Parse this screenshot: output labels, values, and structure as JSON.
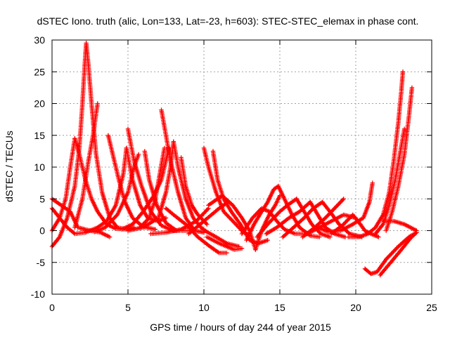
{
  "chart_data": {
    "type": "scatter",
    "title": "dSTEC Iono. truth (alic, Lon=133, Lat=-23, h=603): STEC-STEC_elemax in phase cont.",
    "xlabel": "GPS time / hours of day 244 of year 2015",
    "ylabel": "dSTEC  / TECUs",
    "xlim": [
      0,
      25
    ],
    "ylim": [
      -10,
      30
    ],
    "xticks": [
      0,
      5,
      10,
      15,
      20,
      25
    ],
    "yticks": [
      -10,
      -5,
      0,
      5,
      10,
      15,
      20,
      25,
      30
    ],
    "grid": true,
    "marker": "plus",
    "color": "#ff0000",
    "series": [
      {
        "points": [
          [
            0,
            5
          ],
          [
            0.6,
            4
          ],
          [
            1.2,
            3
          ],
          [
            1.7,
            0.5
          ],
          [
            2.5,
            0
          ],
          [
            3.2,
            -0.3
          ],
          [
            3.8,
            -1
          ]
        ]
      },
      {
        "points": [
          [
            0,
            -2.5
          ],
          [
            0.5,
            -1
          ],
          [
            1,
            2
          ],
          [
            1.5,
            7
          ],
          [
            1.8,
            13
          ],
          [
            2,
            20
          ],
          [
            2.15,
            26
          ],
          [
            2.25,
            29.5
          ]
        ]
      },
      {
        "points": [
          [
            2.25,
            29.5
          ],
          [
            2.4,
            26
          ],
          [
            2.6,
            20
          ],
          [
            2.9,
            12
          ],
          [
            3.3,
            6
          ],
          [
            3.8,
            2
          ],
          [
            4.3,
            0.5
          ],
          [
            5,
            0.2
          ]
        ]
      },
      {
        "points": [
          [
            0,
            3.5
          ],
          [
            0.5,
            2
          ],
          [
            1,
            0.5
          ],
          [
            1.5,
            -0.5
          ],
          [
            2.2,
            -0.3
          ],
          [
            3,
            0.5
          ],
          [
            3.6,
            1.5
          ],
          [
            4.2,
            4
          ],
          [
            4.7,
            9
          ],
          [
            4.9,
            13
          ]
        ]
      },
      {
        "points": [
          [
            0,
            0
          ],
          [
            0.5,
            2
          ],
          [
            0.9,
            5
          ],
          [
            1.2,
            10
          ],
          [
            1.5,
            14.5
          ]
        ]
      },
      {
        "points": [
          [
            1.5,
            14.5
          ],
          [
            1.8,
            12
          ],
          [
            2.2,
            8
          ],
          [
            2.6,
            5
          ],
          [
            3,
            3
          ],
          [
            3.6,
            1
          ],
          [
            4.2,
            0.3
          ],
          [
            5,
            0.2
          ],
          [
            5.4,
            0.5
          ]
        ]
      },
      {
        "points": [
          [
            1.5,
            0.5
          ],
          [
            2,
            5
          ],
          [
            2.4,
            11
          ],
          [
            2.7,
            15
          ],
          [
            3,
            20
          ]
        ]
      },
      {
        "points": [
          [
            3.7,
            15
          ],
          [
            4,
            12
          ],
          [
            4.4,
            8
          ],
          [
            4.8,
            4.5
          ],
          [
            5.3,
            2
          ],
          [
            6,
            0.6
          ],
          [
            6.8,
            0.2
          ]
        ]
      },
      {
        "points": [
          [
            4.9,
            13
          ],
          [
            5.3,
            8
          ],
          [
            5.8,
            4
          ],
          [
            6.3,
            2
          ],
          [
            7,
            1.5
          ],
          [
            7.5,
            2
          ]
        ]
      },
      {
        "points": [
          [
            5,
            16
          ],
          [
            5.4,
            11
          ],
          [
            5.9,
            7
          ],
          [
            6.5,
            3
          ],
          [
            7.2,
            0.8
          ],
          [
            8,
            0
          ],
          [
            9,
            0
          ]
        ]
      },
      {
        "points": [
          [
            2.8,
            -0.2
          ],
          [
            3.5,
            0.5
          ],
          [
            4.3,
            2.5
          ],
          [
            5,
            6
          ],
          [
            5.4,
            10
          ],
          [
            5.7,
            12
          ]
        ]
      },
      {
        "points": [
          [
            5.8,
            0.5
          ],
          [
            6.4,
            2
          ],
          [
            6.8,
            5
          ],
          [
            7.1,
            9
          ],
          [
            7.4,
            13
          ]
        ]
      },
      {
        "points": [
          [
            6.1,
            12.5
          ],
          [
            6.4,
            8
          ],
          [
            6.9,
            4
          ],
          [
            7.5,
            1.2
          ],
          [
            8.2,
            0
          ]
        ]
      },
      {
        "points": [
          [
            4.6,
            0.2
          ],
          [
            5.3,
            1
          ],
          [
            6,
            3
          ],
          [
            6.7,
            5.5
          ],
          [
            7.2,
            8
          ],
          [
            7.5,
            11
          ],
          [
            7.7,
            13
          ]
        ]
      },
      {
        "points": [
          [
            7.2,
            19
          ],
          [
            7.5,
            15
          ],
          [
            7.8,
            11
          ],
          [
            8.3,
            6
          ],
          [
            8.8,
            2
          ],
          [
            9.4,
            0
          ],
          [
            10,
            -0.3
          ]
        ]
      },
      {
        "points": [
          [
            5,
            0
          ],
          [
            6,
            0.5
          ],
          [
            7,
            2
          ],
          [
            7.5,
            6
          ],
          [
            7.8,
            10
          ],
          [
            8,
            14
          ]
        ]
      },
      {
        "points": [
          [
            8,
            14
          ],
          [
            8.3,
            10
          ],
          [
            8.8,
            5
          ],
          [
            9.3,
            2
          ],
          [
            9.8,
            0.5
          ],
          [
            10.2,
            -0.2
          ],
          [
            10.8,
            -1
          ],
          [
            11.5,
            -2
          ],
          [
            12.3,
            -2.5
          ]
        ]
      },
      {
        "points": [
          [
            6.5,
            -0.5
          ],
          [
            7.5,
            -0.3
          ],
          [
            8.5,
            0.2
          ],
          [
            9.5,
            1.5
          ],
          [
            10.3,
            3.5
          ]
        ]
      },
      {
        "points": [
          [
            7.5,
            3.5
          ],
          [
            8,
            2.5
          ],
          [
            8.8,
            1
          ],
          [
            9.6,
            -1
          ],
          [
            10.4,
            -2.5
          ],
          [
            11,
            -3.5
          ],
          [
            11.5,
            -3.5
          ]
        ]
      },
      {
        "points": [
          [
            8.5,
            11.5
          ],
          [
            8.8,
            7
          ],
          [
            9.2,
            4
          ],
          [
            9.6,
            2.5
          ],
          [
            10.2,
            1
          ]
        ]
      },
      {
        "points": [
          [
            10,
            13
          ],
          [
            10.3,
            10
          ],
          [
            10.8,
            6
          ],
          [
            11.3,
            3
          ],
          [
            11.9,
            1.5
          ],
          [
            12.5,
            0
          ],
          [
            13,
            -0.8
          ]
        ]
      },
      {
        "points": [
          [
            10.6,
            12.5
          ],
          [
            10.9,
            8
          ],
          [
            11.3,
            5
          ],
          [
            11.8,
            3
          ],
          [
            12.4,
            1
          ],
          [
            13,
            -1.5
          ],
          [
            13.6,
            -2
          ],
          [
            14.2,
            -1.5
          ]
        ]
      },
      {
        "points": [
          [
            10.3,
            4
          ],
          [
            11.2,
            5.5
          ],
          [
            11.9,
            4
          ],
          [
            12.5,
            2
          ],
          [
            13,
            0
          ],
          [
            13.4,
            -3
          ]
        ]
      },
      {
        "points": [
          [
            9,
            -0.5
          ],
          [
            10,
            1.5
          ],
          [
            11,
            3.5
          ],
          [
            11.6,
            4.5
          ]
        ]
      },
      {
        "points": [
          [
            12.8,
            -1.5
          ],
          [
            13.3,
            1
          ],
          [
            13.8,
            3
          ],
          [
            14.2,
            4.5
          ],
          [
            14.6,
            6.5
          ],
          [
            14.9,
            7
          ]
        ]
      },
      {
        "points": [
          [
            14.9,
            7
          ],
          [
            15.3,
            5
          ],
          [
            15.8,
            2.5
          ],
          [
            16.3,
            0.5
          ],
          [
            17,
            -0.8
          ],
          [
            17.6,
            -1
          ]
        ]
      },
      {
        "points": [
          [
            13.4,
            -3
          ],
          [
            13.8,
            0
          ],
          [
            14.3,
            2.5
          ],
          [
            14.7,
            4
          ],
          [
            15,
            5.5
          ]
        ]
      },
      {
        "points": [
          [
            13.5,
            -1
          ],
          [
            14.2,
            1
          ],
          [
            15,
            3
          ],
          [
            15.5,
            4
          ],
          [
            16.1,
            5
          ]
        ]
      },
      {
        "points": [
          [
            16.1,
            5
          ],
          [
            16.6,
            3
          ],
          [
            17.1,
            1
          ],
          [
            17.7,
            -0.5
          ],
          [
            18.3,
            -1
          ]
        ]
      },
      {
        "points": [
          [
            14.1,
            -0.5
          ],
          [
            14.8,
            0.5
          ],
          [
            15.6,
            2
          ],
          [
            16.3,
            3
          ],
          [
            17,
            4.5
          ]
        ]
      },
      {
        "points": [
          [
            17,
            4.5
          ],
          [
            17.5,
            2.5
          ],
          [
            18,
            0.5
          ],
          [
            18.6,
            -0.5
          ],
          [
            19.3,
            -1
          ]
        ]
      },
      {
        "points": [
          [
            12.5,
            -0.5
          ],
          [
            13.2,
            2
          ],
          [
            13.8,
            3.5
          ],
          [
            14.3,
            3
          ]
        ]
      },
      {
        "points": [
          [
            14.3,
            3
          ],
          [
            14.8,
            1.5
          ],
          [
            15.3,
            0.2
          ],
          [
            16,
            -0.5
          ],
          [
            16.8,
            -0.5
          ]
        ]
      },
      {
        "points": [
          [
            15.2,
            -1
          ],
          [
            15.9,
            0.5
          ],
          [
            16.6,
            2
          ],
          [
            17.2,
            3.5
          ],
          [
            17.8,
            4.5
          ]
        ]
      },
      {
        "points": [
          [
            17.8,
            4.5
          ],
          [
            18.3,
            3
          ],
          [
            18.9,
            1
          ],
          [
            19.6,
            -0.5
          ],
          [
            20.4,
            -1
          ]
        ]
      },
      {
        "points": [
          [
            16.5,
            -1
          ],
          [
            17.3,
            0.5
          ],
          [
            18,
            2
          ],
          [
            18.6,
            3.5
          ],
          [
            19.2,
            5
          ]
        ]
      },
      {
        "points": [
          [
            16.8,
            -0.5
          ],
          [
            17.6,
            0.5
          ],
          [
            18.4,
            1.5
          ],
          [
            19.2,
            2.5
          ],
          [
            20,
            2
          ]
        ]
      },
      {
        "points": [
          [
            17.5,
            0.5
          ],
          [
            18.2,
            -0.2
          ],
          [
            19,
            0
          ],
          [
            19.8,
            1
          ],
          [
            20.5,
            2
          ],
          [
            20.9,
            4.5
          ],
          [
            21.1,
            7.5
          ]
        ]
      },
      {
        "points": [
          [
            18.4,
            -0.5
          ],
          [
            19.2,
            1
          ],
          [
            19.8,
            2.5
          ],
          [
            20.3,
            1
          ]
        ]
      },
      {
        "points": [
          [
            20.3,
            1
          ],
          [
            20.6,
            0
          ],
          [
            21,
            -0.5
          ],
          [
            21.5,
            -1
          ]
        ]
      },
      {
        "points": [
          [
            19.5,
            -1
          ],
          [
            20.2,
            -1
          ],
          [
            20.8,
            -0.5
          ],
          [
            21.3,
            0.5
          ],
          [
            21.8,
            2.5
          ],
          [
            22.2,
            6
          ],
          [
            22.5,
            11
          ],
          [
            22.8,
            17
          ],
          [
            23,
            22
          ],
          [
            23.1,
            25
          ]
        ]
      },
      {
        "points": [
          [
            21.3,
            -0.5
          ],
          [
            21.8,
            1
          ],
          [
            22.2,
            4
          ],
          [
            22.6,
            8
          ],
          [
            22.9,
            12
          ],
          [
            23.2,
            16
          ]
        ]
      },
      {
        "points": [
          [
            22,
            0
          ],
          [
            22.4,
            3
          ],
          [
            22.8,
            7
          ],
          [
            23.2,
            12
          ],
          [
            23.5,
            18
          ],
          [
            23.7,
            22.5
          ]
        ]
      },
      {
        "points": [
          [
            21.8,
            1.5
          ],
          [
            22.5,
            1.5
          ],
          [
            23.2,
            1
          ],
          [
            23.6,
            0.5
          ],
          [
            24,
            0
          ]
        ]
      },
      {
        "points": [
          [
            20.6,
            -6
          ],
          [
            21,
            -6.8
          ],
          [
            21.4,
            -6.5
          ],
          [
            22,
            -4.5
          ],
          [
            22.8,
            -2.5
          ],
          [
            23.5,
            -1
          ],
          [
            24,
            -0.3
          ]
        ]
      },
      {
        "points": [
          [
            21.6,
            -7
          ],
          [
            22.3,
            -5
          ],
          [
            23,
            -3
          ],
          [
            23.6,
            -1.2
          ],
          [
            24,
            -0.3
          ]
        ]
      },
      {
        "points": [
          [
            10.2,
            -1
          ],
          [
            11,
            -2
          ],
          [
            12,
            -3
          ],
          [
            12.5,
            -2.8
          ]
        ]
      }
    ]
  }
}
